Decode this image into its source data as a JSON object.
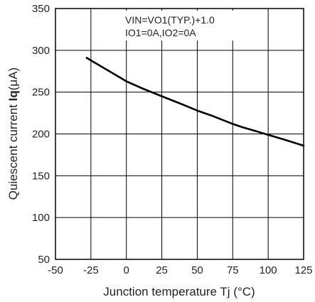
{
  "chart_data": {
    "type": "line",
    "title": "",
    "xlabel": "Junction temperature Tj (°C)",
    "ylabel_prefix": "Quiescent current ",
    "ylabel_symbol": "Iq",
    "ylabel_unit": "(μA)",
    "xlim": [
      -50,
      125
    ],
    "ylim": [
      50,
      350
    ],
    "x_ticks": [
      -50,
      -25,
      0,
      25,
      50,
      75,
      100,
      125
    ],
    "y_ticks": [
      50,
      100,
      150,
      200,
      250,
      300,
      350
    ],
    "x_tick_labels": [
      "-50",
      "-25",
      "0",
      "25",
      "50",
      "75",
      "100",
      "125"
    ],
    "y_tick_labels": [
      "50",
      "100",
      "150",
      "200",
      "250",
      "300",
      "350"
    ],
    "grid": true,
    "annotation_line1": "VIN=VO1(TYP.)+1.0",
    "annotation_line2": "IO1=0A,IO2=0A",
    "series": [
      {
        "x": [
          -28,
          -25,
          -10,
          0,
          12,
          25,
          40,
          50,
          60,
          75,
          82,
          90,
          100,
          110,
          125
        ],
        "values": [
          291,
          288,
          273,
          263,
          254,
          245,
          235,
          228,
          222,
          212,
          208,
          204,
          199,
          194,
          186
        ]
      }
    ]
  }
}
